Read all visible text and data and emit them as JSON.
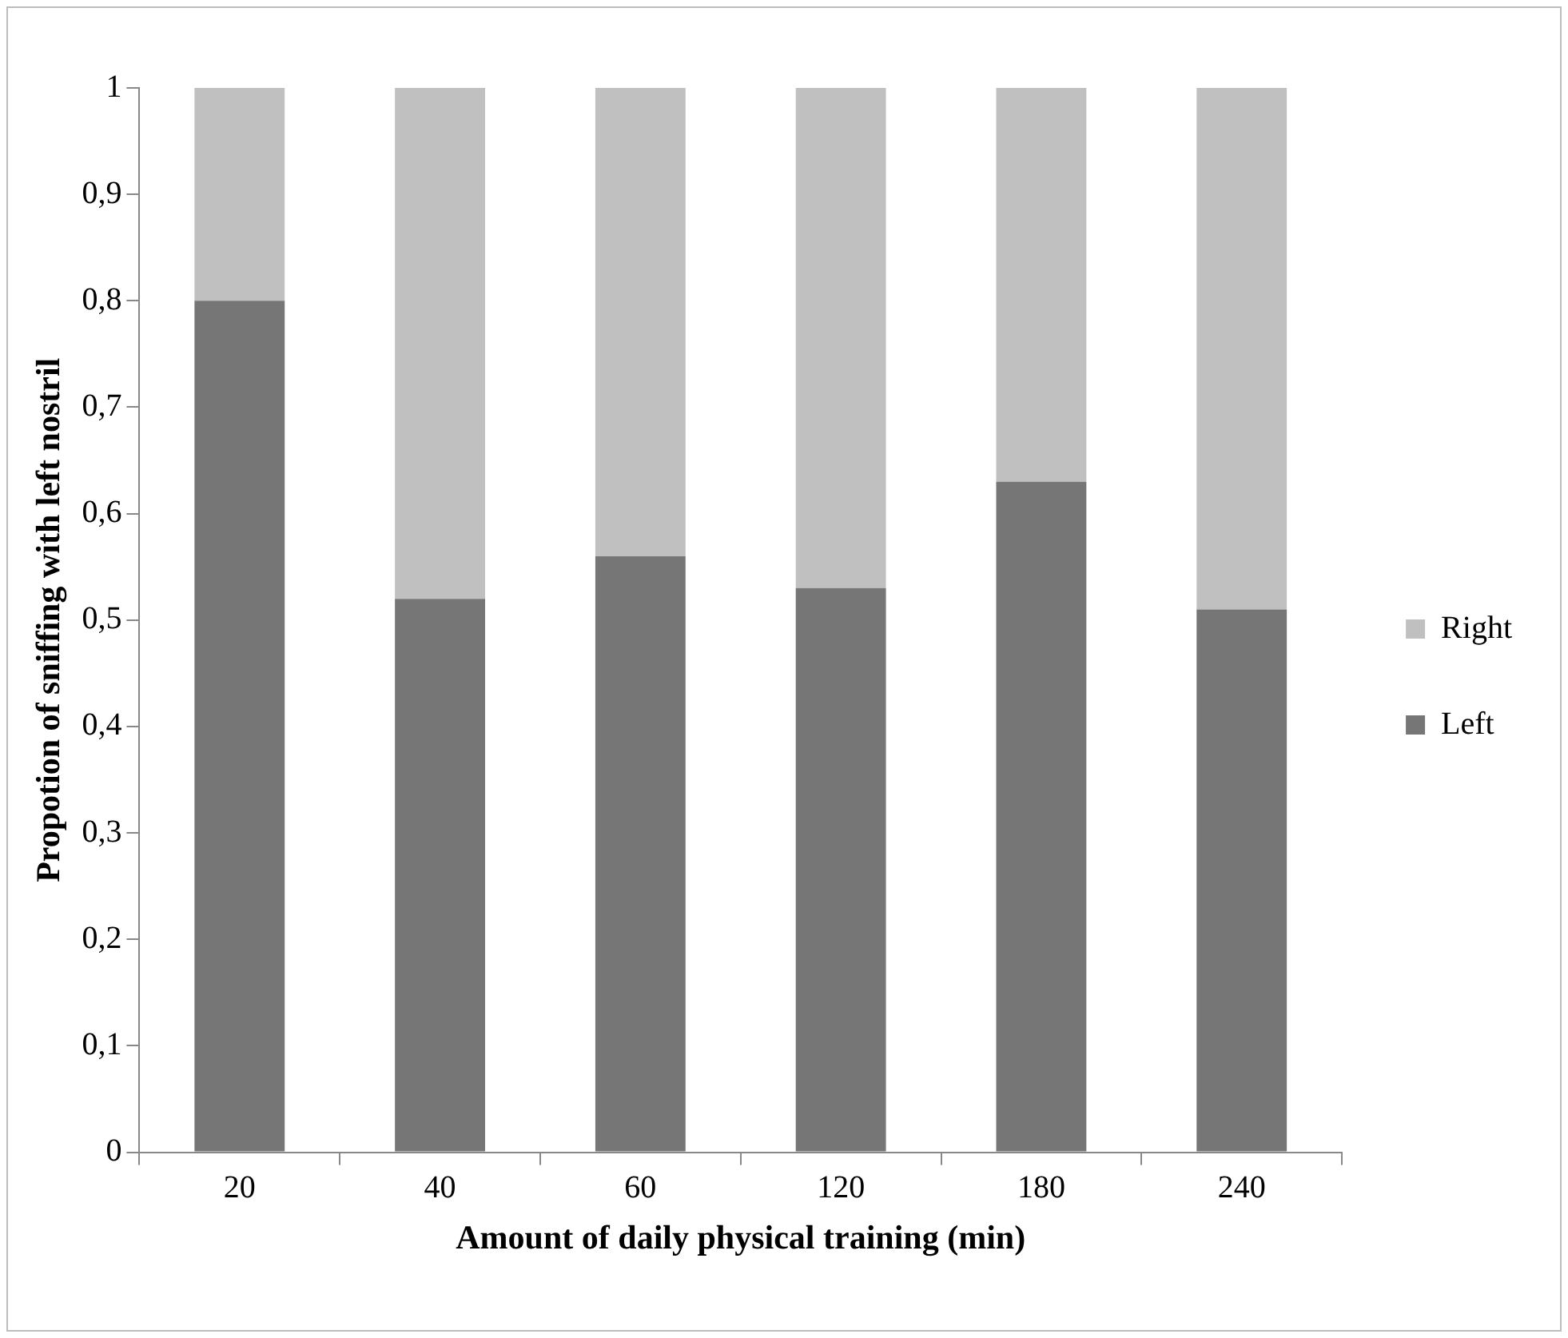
{
  "chart_data": {
    "type": "bar",
    "stacked": true,
    "xlabel": "Amount of daily physical training (min)",
    "ylabel": "Propotion of sniffing with left nostril",
    "categories": [
      "20",
      "40",
      "60",
      "120",
      "180",
      "240"
    ],
    "series": [
      {
        "name": "Left",
        "color": "#767676",
        "values": [
          0.8,
          0.52,
          0.56,
          0.53,
          0.63,
          0.51
        ]
      },
      {
        "name": "Right",
        "color": "#c0c0c0",
        "values": [
          0.2,
          0.48,
          0.44,
          0.47,
          0.37,
          0.49
        ]
      }
    ],
    "ylim": [
      0,
      1
    ],
    "yticks": [
      0,
      {
        "value": 0.1,
        "label": "0,1"
      },
      {
        "value": 0.2,
        "label": "0,2"
      },
      {
        "value": 0.3,
        "label": "0,3"
      },
      {
        "value": 0.4,
        "label": "0,4"
      },
      {
        "value": 0.5,
        "label": "0,5"
      },
      {
        "value": 0.6,
        "label": "0,6"
      },
      {
        "value": 0.7,
        "label": "0,7"
      },
      {
        "value": 0.8,
        "label": "0,8"
      },
      {
        "value": 0.9,
        "label": "0,9"
      },
      1
    ],
    "grid": false,
    "legend": "right"
  }
}
